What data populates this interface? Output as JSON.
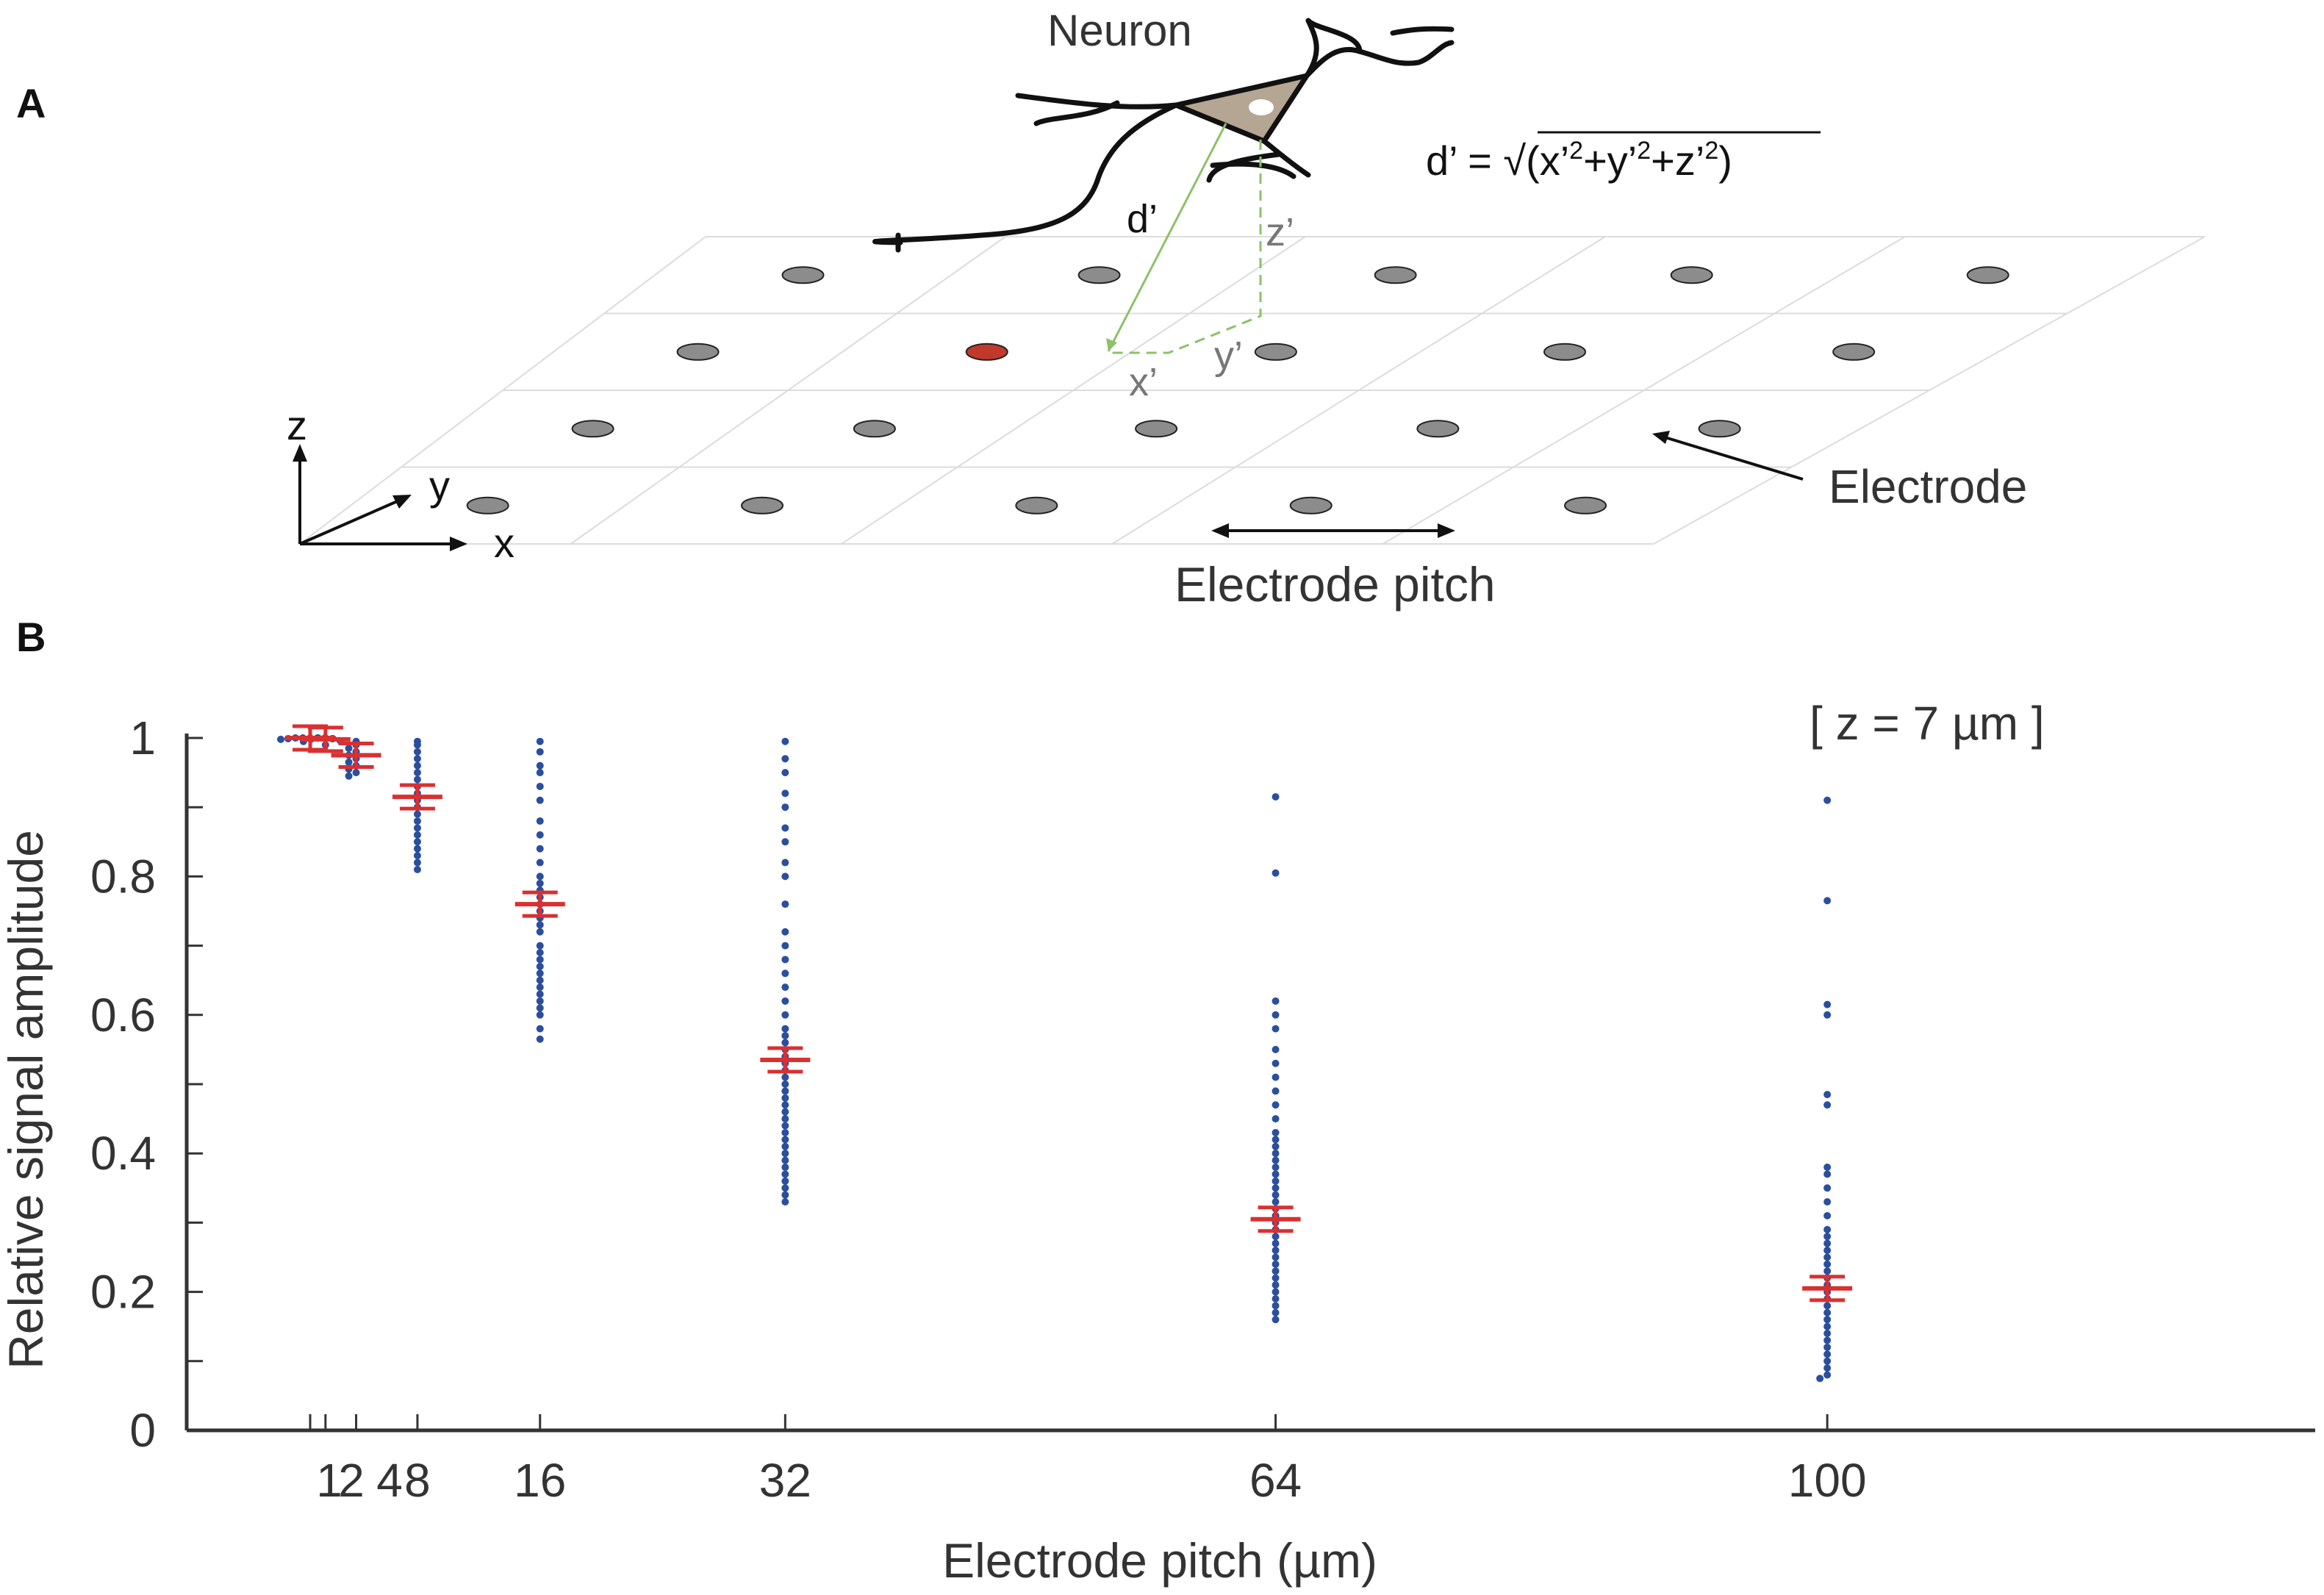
{
  "panel_a": {
    "label": "A",
    "neuron_label": "Neuron",
    "formula_prefix": "d’ = √(x’",
    "formula_mid1": "+y’",
    "formula_mid2": "+z’",
    "formula_suffix": ")",
    "formula_exp": "2",
    "d_label": "d’",
    "x_label": "x’",
    "y_label": "y’",
    "z_label": "z’",
    "axis_x": "x",
    "axis_y": "y",
    "axis_z": "z",
    "electrode_label": "Electrode",
    "pitch_label": "Electrode pitch",
    "colors": {
      "soma": "#b5a593",
      "active_electrode": "#c0392b",
      "electrode": "#8c8c8c",
      "green_line": "#8fc06a"
    }
  },
  "panel_b": {
    "label": "B",
    "annotation": "[ z = 7 µm ]"
  },
  "chart_data": {
    "type": "scatter",
    "xlabel": "Electrode pitch (µm)",
    "ylabel": "Relative signal amplitude",
    "ylim": [
      0,
      1
    ],
    "x_ticks": [
      "1",
      "2",
      "4",
      "8",
      "16",
      "32",
      "64",
      "100"
    ],
    "y_ticks": [
      "0",
      "0.2",
      "0.4",
      "0.6",
      "0.8",
      "1"
    ],
    "colors": {
      "points": "#2b4f9e",
      "mean": "#d93030"
    },
    "groups": [
      {
        "pitch": 1,
        "mean": 1.0,
        "values": [
          1.0,
          1.0,
          1.0,
          1.0,
          1.0,
          0.999,
          0.999,
          0.998
        ]
      },
      {
        "pitch": 2,
        "mean": 0.998,
        "values": [
          1.0,
          1.0,
          0.999,
          0.998,
          0.996,
          0.995,
          0.99
        ]
      },
      {
        "pitch": 4,
        "mean": 0.975,
        "values": [
          0.995,
          0.99,
          0.985,
          0.98,
          0.975,
          0.97,
          0.965,
          0.96,
          0.955,
          0.95,
          0.945
        ]
      },
      {
        "pitch": 8,
        "mean": 0.915,
        "values": [
          0.995,
          0.99,
          0.98,
          0.97,
          0.96,
          0.95,
          0.94,
          0.93,
          0.92,
          0.91,
          0.9,
          0.89,
          0.88,
          0.87,
          0.86,
          0.85,
          0.84,
          0.83,
          0.82,
          0.81
        ]
      },
      {
        "pitch": 16,
        "mean": 0.76,
        "values": [
          0.995,
          0.98,
          0.96,
          0.95,
          0.93,
          0.91,
          0.88,
          0.86,
          0.84,
          0.82,
          0.8,
          0.79,
          0.78,
          0.77,
          0.76,
          0.75,
          0.74,
          0.73,
          0.72,
          0.7,
          0.69,
          0.68,
          0.67,
          0.66,
          0.65,
          0.64,
          0.63,
          0.62,
          0.61,
          0.6,
          0.58,
          0.565
        ]
      },
      {
        "pitch": 32,
        "mean": 0.535,
        "values": [
          0.995,
          0.97,
          0.95,
          0.92,
          0.9,
          0.87,
          0.85,
          0.82,
          0.8,
          0.76,
          0.72,
          0.7,
          0.68,
          0.66,
          0.64,
          0.62,
          0.6,
          0.58,
          0.57,
          0.56,
          0.55,
          0.54,
          0.53,
          0.52,
          0.51,
          0.5,
          0.49,
          0.48,
          0.47,
          0.46,
          0.45,
          0.44,
          0.43,
          0.42,
          0.41,
          0.4,
          0.39,
          0.38,
          0.37,
          0.36,
          0.35,
          0.34,
          0.33
        ]
      },
      {
        "pitch": 64,
        "mean": 0.305,
        "values": [
          0.915,
          0.805,
          0.62,
          0.6,
          0.58,
          0.55,
          0.53,
          0.51,
          0.49,
          0.47,
          0.45,
          0.43,
          0.42,
          0.41,
          0.4,
          0.39,
          0.38,
          0.37,
          0.36,
          0.35,
          0.34,
          0.33,
          0.32,
          0.31,
          0.3,
          0.29,
          0.28,
          0.27,
          0.26,
          0.25,
          0.24,
          0.23,
          0.22,
          0.21,
          0.2,
          0.19,
          0.18,
          0.17,
          0.16
        ]
      },
      {
        "pitch": 100,
        "mean": 0.205,
        "values": [
          0.91,
          0.765,
          0.615,
          0.6,
          0.485,
          0.47,
          0.38,
          0.37,
          0.35,
          0.33,
          0.31,
          0.29,
          0.28,
          0.27,
          0.26,
          0.25,
          0.24,
          0.23,
          0.22,
          0.21,
          0.2,
          0.19,
          0.18,
          0.17,
          0.16,
          0.15,
          0.14,
          0.13,
          0.12,
          0.11,
          0.1,
          0.09,
          0.08,
          0.075
        ]
      }
    ]
  }
}
